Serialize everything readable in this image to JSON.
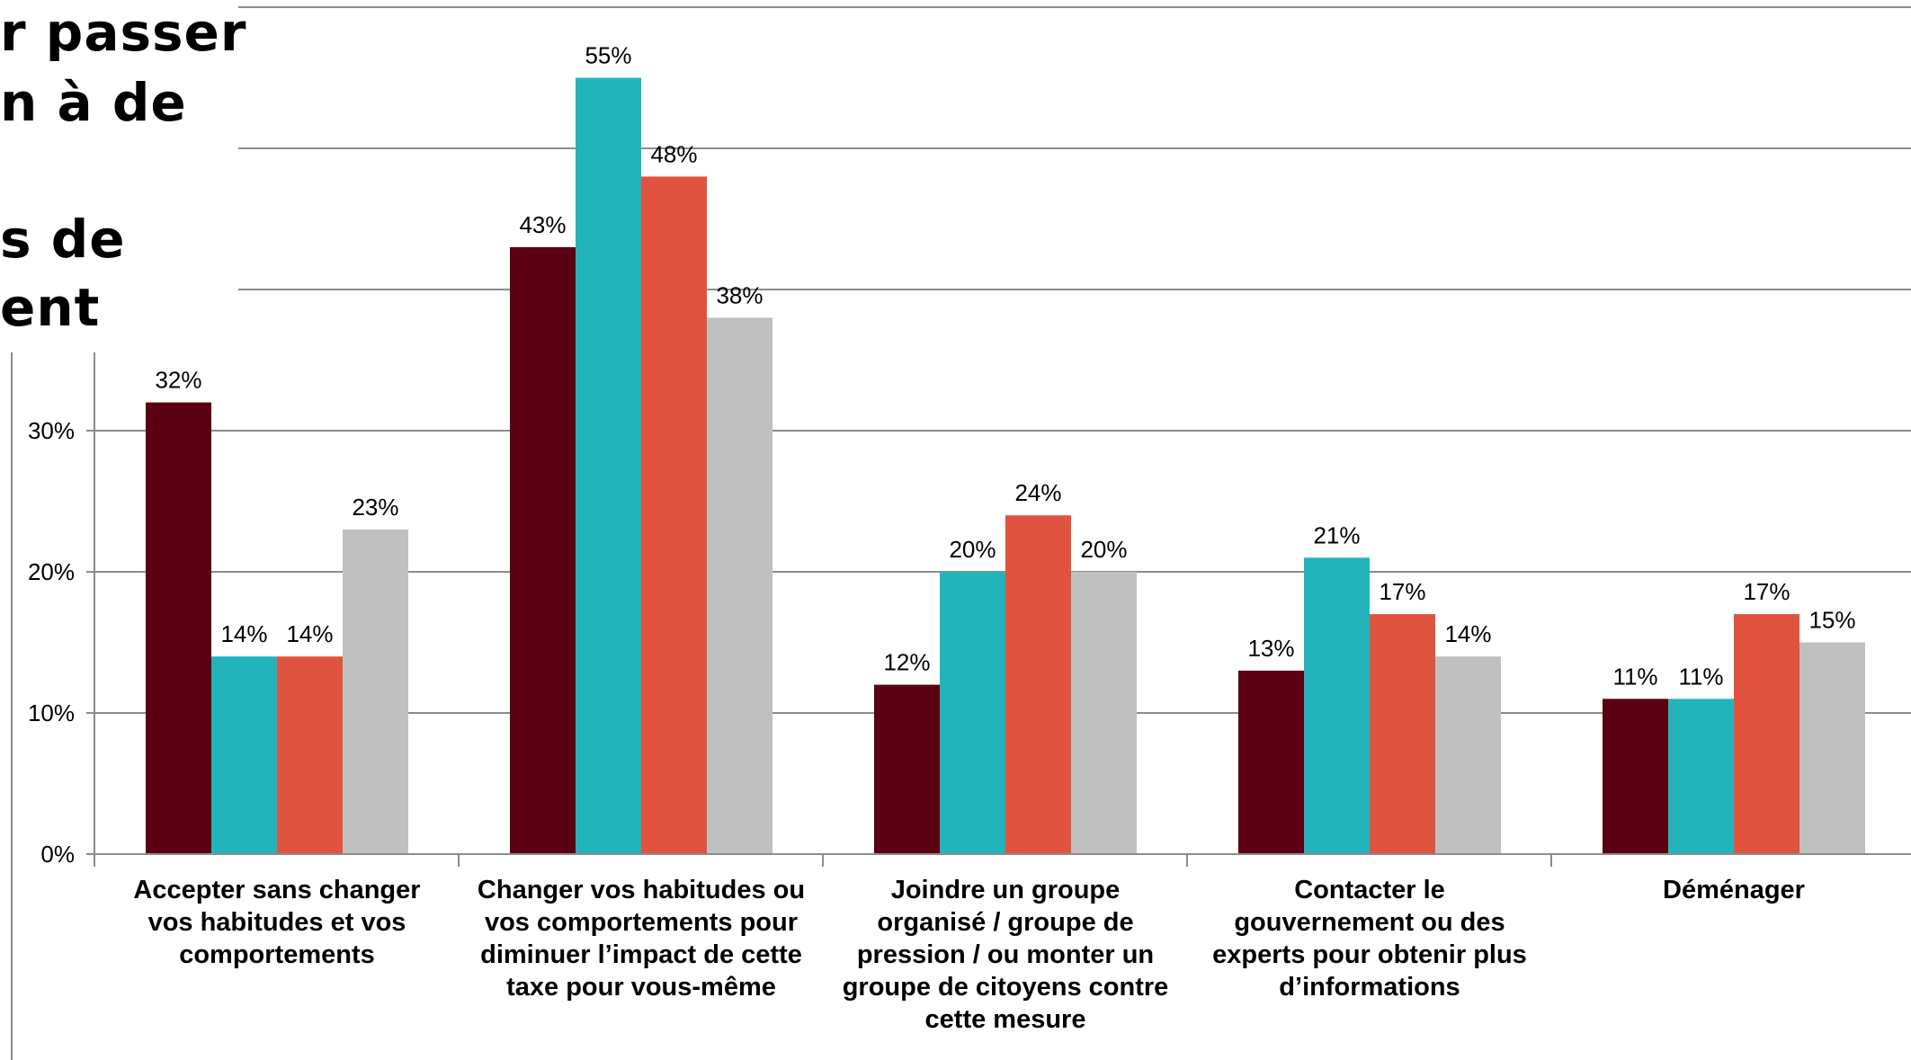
{
  "title_fragments": [
    "r passer",
    "n à de",
    "s de",
    "ent"
  ],
  "chart_data": {
    "type": "bar",
    "categories": [
      [
        "Accepter sans changer",
        "vos habitudes et vos",
        "comportements"
      ],
      [
        "Changer vos habitudes ou",
        "vos comportements pour",
        "diminuer l’impact de cette",
        "taxe pour vous-même"
      ],
      [
        "Joindre un groupe",
        "organisé / groupe de",
        "pression / ou monter un",
        "groupe de citoyens contre",
        "cette mesure"
      ],
      [
        "Contacter le",
        "gouvernement ou des",
        "experts pour obtenir plus",
        "d’informations"
      ],
      [
        "Déménager"
      ]
    ],
    "series": [
      {
        "color": "#5a0012",
        "values": [
          32,
          43,
          12,
          13,
          11
        ]
      },
      {
        "color": "#23b4bb",
        "values": [
          14,
          55,
          20,
          21,
          11
        ]
      },
      {
        "color": "#e0533e",
        "values": [
          14,
          48,
          24,
          17,
          17
        ]
      },
      {
        "color": "#c0c0c0",
        "values": [
          23,
          38,
          20,
          14,
          15
        ]
      }
    ],
    "data_labels": [
      [
        "32%",
        "43%",
        "12%",
        "13%",
        "11%"
      ],
      [
        "14%",
        "55%",
        "20%",
        "21%",
        "11%"
      ],
      [
        "14%",
        "48%",
        "24%",
        "17%",
        "17%"
      ],
      [
        "23%",
        "38%",
        "20%",
        "14%",
        "15%"
      ]
    ],
    "y_ticks": [
      0,
      10,
      20,
      30
    ],
    "y_tick_labels": [
      "0%",
      "10%",
      "20%",
      "30%"
    ],
    "ylim": [
      0,
      60
    ],
    "grid": true,
    "xlabel": "",
    "ylabel": ""
  }
}
